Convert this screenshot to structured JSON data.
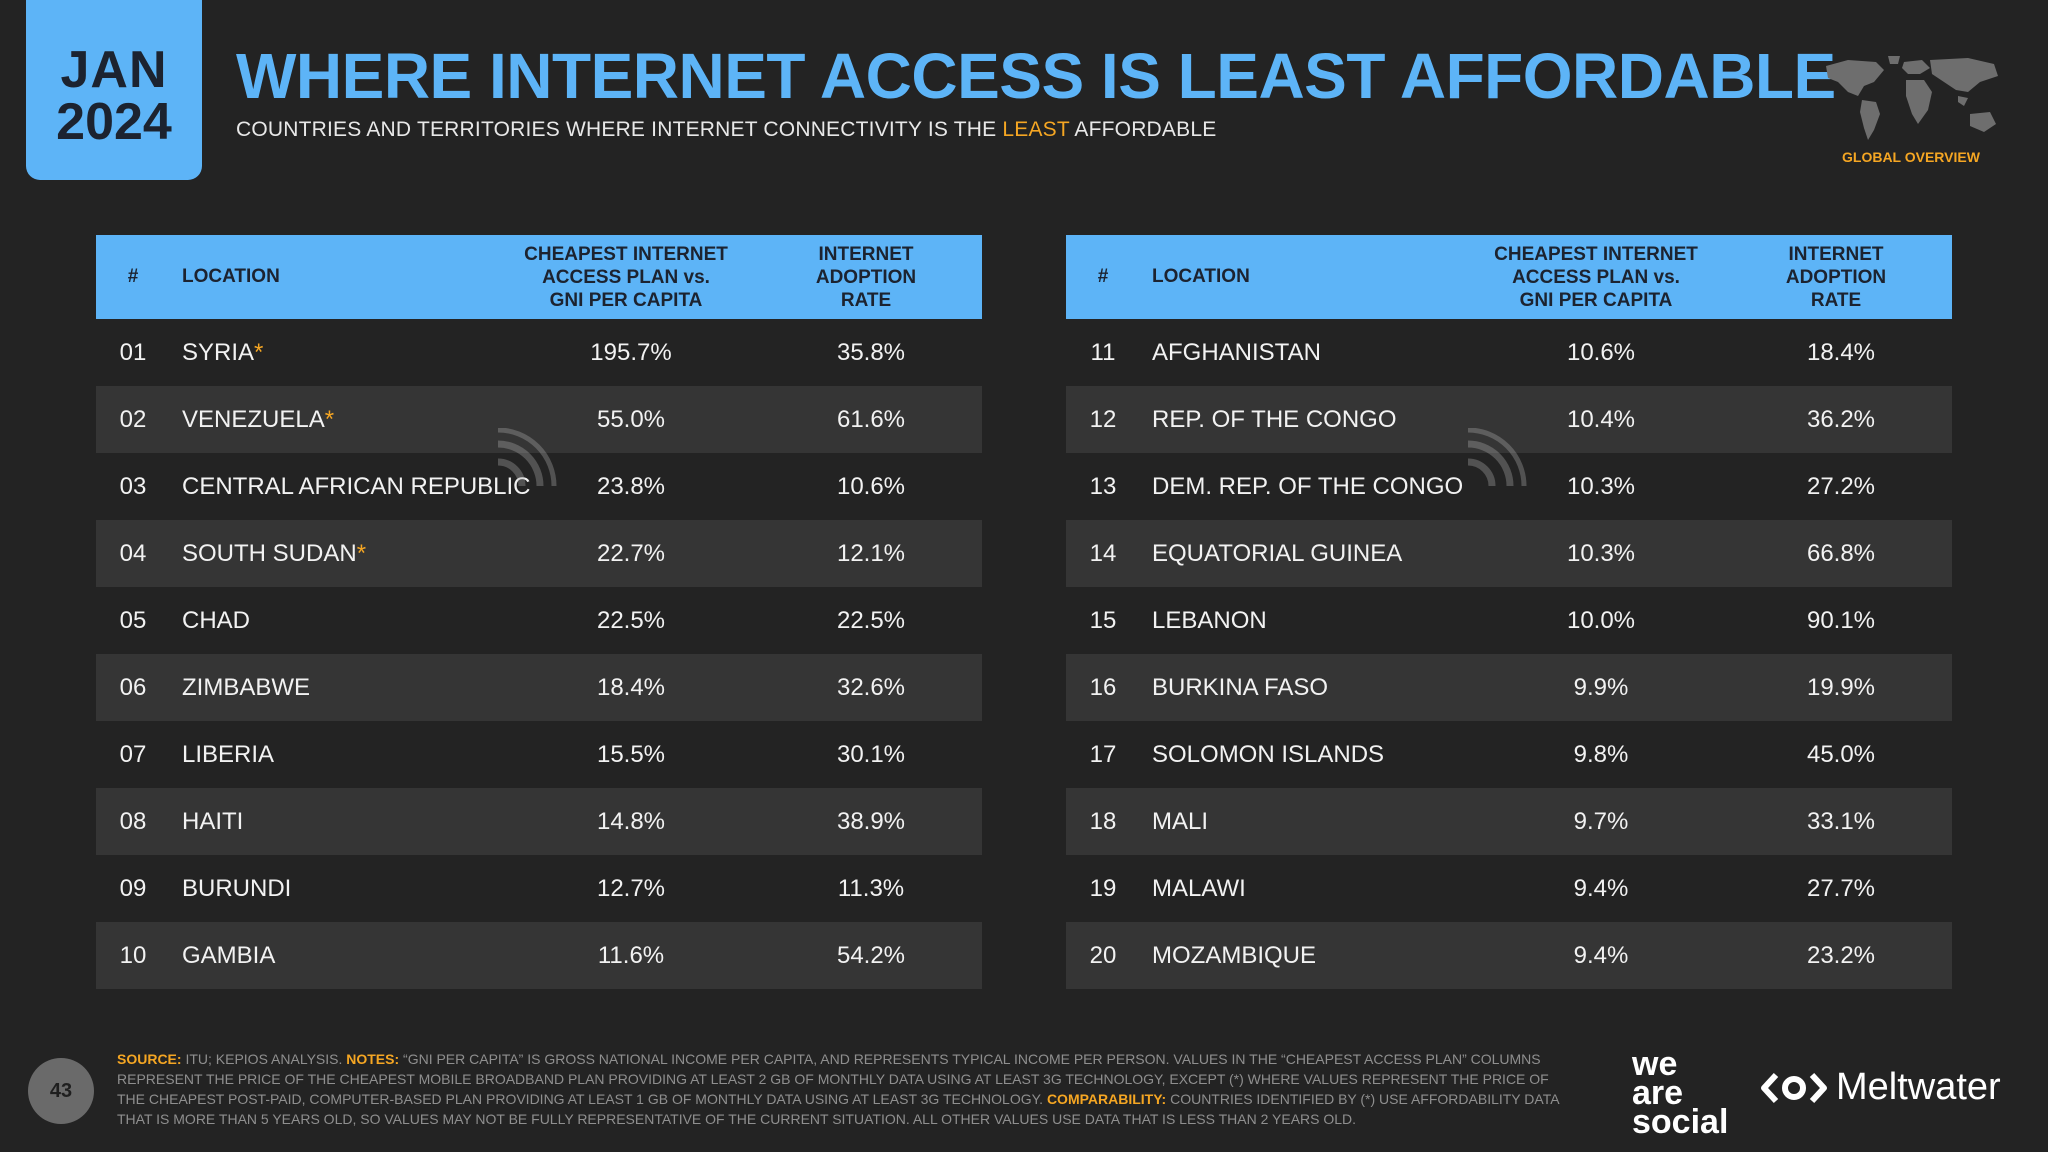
{
  "header": {
    "month": "JAN",
    "year": "2024",
    "title": "WHERE INTERNET ACCESS IS LEAST AFFORDABLE",
    "subtitle_pre": "COUNTRIES AND TERRITORIES WHERE INTERNET CONNECTIVITY IS THE ",
    "subtitle_hl": "LEAST",
    "subtitle_post": " AFFORDABLE",
    "section": "GLOBAL OVERVIEW"
  },
  "columns": {
    "num": "#",
    "location": "LOCATION",
    "plan_l1": "CHEAPEST INTERNET",
    "plan_l2": "ACCESS PLAN vs.",
    "plan_l3": "GNI PER CAPITA",
    "rate_l1": "INTERNET",
    "rate_l2": "ADOPTION",
    "rate_l3": "RATE"
  },
  "left_rows": [
    {
      "num": "01",
      "location": "SYRIA",
      "star": "*",
      "plan": "195.7%",
      "rate": "35.8%"
    },
    {
      "num": "02",
      "location": "VENEZUELA",
      "star": "*",
      "plan": "55.0%",
      "rate": "61.6%"
    },
    {
      "num": "03",
      "location": "CENTRAL AFRICAN REPUBLIC",
      "star": "",
      "plan": "23.8%",
      "rate": "10.6%"
    },
    {
      "num": "04",
      "location": "SOUTH SUDAN",
      "star": "*",
      "plan": "22.7%",
      "rate": "12.1%"
    },
    {
      "num": "05",
      "location": "CHAD",
      "star": "",
      "plan": "22.5%",
      "rate": "22.5%"
    },
    {
      "num": "06",
      "location": "ZIMBABWE",
      "star": "",
      "plan": "18.4%",
      "rate": "32.6%"
    },
    {
      "num": "07",
      "location": "LIBERIA",
      "star": "",
      "plan": "15.5%",
      "rate": "30.1%"
    },
    {
      "num": "08",
      "location": "HAITI",
      "star": "",
      "plan": "14.8%",
      "rate": "38.9%"
    },
    {
      "num": "09",
      "location": "BURUNDI",
      "star": "",
      "plan": "12.7%",
      "rate": "11.3%"
    },
    {
      "num": "10",
      "location": "GAMBIA",
      "star": "",
      "plan": "11.6%",
      "rate": "54.2%"
    }
  ],
  "right_rows": [
    {
      "num": "11",
      "location": "AFGHANISTAN",
      "star": "",
      "plan": "10.6%",
      "rate": "18.4%"
    },
    {
      "num": "12",
      "location": "REP. OF THE CONGO",
      "star": "",
      "plan": "10.4%",
      "rate": "36.2%"
    },
    {
      "num": "13",
      "location": "DEM. REP. OF THE CONGO",
      "star": "",
      "plan": "10.3%",
      "rate": "27.2%"
    },
    {
      "num": "14",
      "location": "EQUATORIAL GUINEA",
      "star": "",
      "plan": "10.3%",
      "rate": "66.8%"
    },
    {
      "num": "15",
      "location": "LEBANON",
      "star": "",
      "plan": "10.0%",
      "rate": "90.1%"
    },
    {
      "num": "16",
      "location": "BURKINA FASO",
      "star": "",
      "plan": "9.9%",
      "rate": "19.9%"
    },
    {
      "num": "17",
      "location": "SOLOMON ISLANDS",
      "star": "",
      "plan": "9.8%",
      "rate": "45.0%"
    },
    {
      "num": "18",
      "location": "MALI",
      "star": "",
      "plan": "9.7%",
      "rate": "33.1%"
    },
    {
      "num": "19",
      "location": "MALAWI",
      "star": "",
      "plan": "9.4%",
      "rate": "27.7%"
    },
    {
      "num": "20",
      "location": "MOZAMBIQUE",
      "star": "",
      "plan": "9.4%",
      "rate": "23.2%"
    }
  ],
  "footer": {
    "page": "43",
    "source_label": "SOURCE:",
    "source_text": " ITU; KEPIOS ANALYSIS. ",
    "notes_label": "NOTES:",
    "notes_text": " “GNI PER CAPITA” IS GROSS NATIONAL INCOME PER CAPITA, AND REPRESENTS TYPICAL INCOME PER PERSON. VALUES IN THE “CHEAPEST ACCESS PLAN” COLUMNS REPRESENT THE PRICE OF THE CHEAPEST MOBILE BROADBAND PLAN PROVIDING AT LEAST 2 GB OF MONTHLY DATA USING AT LEAST 3G TECHNOLOGY, EXCEPT (*) WHERE VALUES REPRESENT THE PRICE OF THE CHEAPEST POST-PAID, COMPUTER-BASED PLAN PROVIDING AT LEAST 1 GB OF MONTHLY DATA USING AT LEAST 3G TECHNOLOGY. ",
    "comp_label": "COMPARABILITY:",
    "comp_text": " COUNTRIES IDENTIFIED BY (*) USE AFFORDABILITY DATA THAT IS MORE THAN 5 YEARS OLD, SO VALUES MAY NOT BE FULLY REPRESENTATIVE OF THE CURRENT SITUATION. ALL OTHER VALUES USE DATA THAT IS LESS THAN 2 YEARS OLD.",
    "brand1_l1": "we",
    "brand1_l2": "are",
    "brand1_l3": "social",
    "brand2": "Meltwater"
  },
  "colors": {
    "accent": "#5db4f7",
    "highlight": "#f5a623",
    "background": "#232323"
  }
}
